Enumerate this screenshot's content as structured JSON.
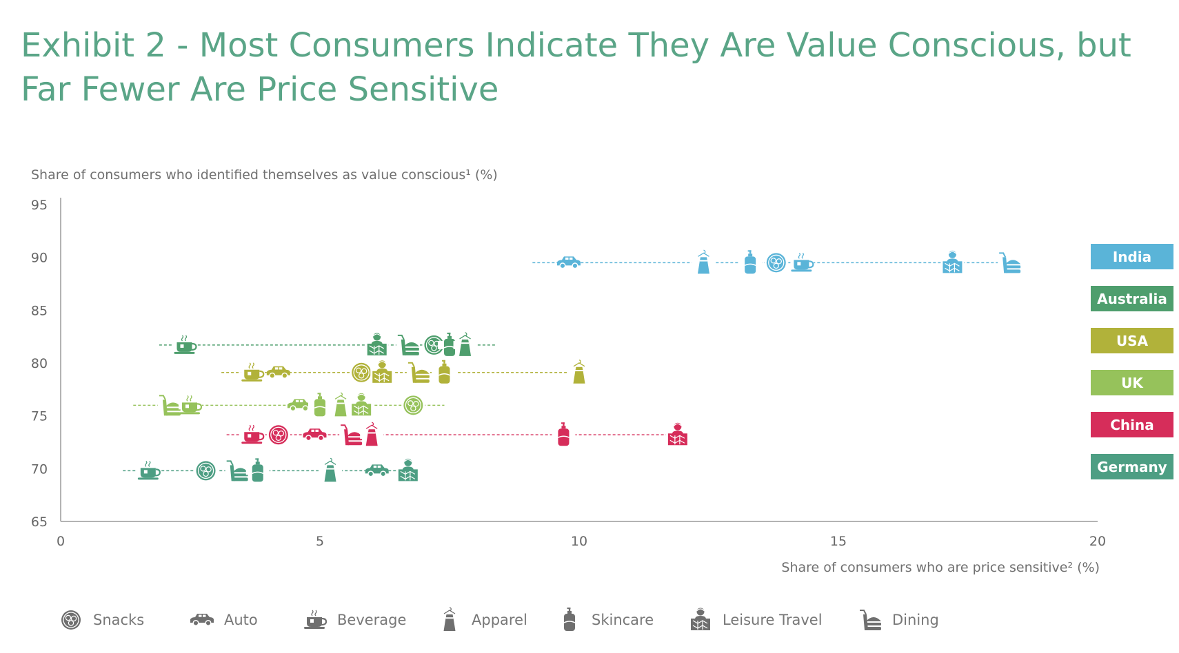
{
  "title": {
    "line1": "Exhibit 2 - Most Consumers Indicate They Are Value Conscious, but",
    "line2": "Far Fewer Are Price Sensitive"
  },
  "chart_data": {
    "type": "scatter",
    "title": "Exhibit 2 - Most Consumers Indicate They Are Value Conscious, but Far Fewer Are Price Sensitive",
    "ylabel": "Share of consumers who identified themselves as value conscious¹ (%)",
    "xlabel": "Share of consumers who are price sensitive² (%)",
    "xlim": [
      0,
      20
    ],
    "ylim": [
      65,
      95
    ],
    "xticks": [
      "0",
      "5",
      "10",
      "15",
      "20"
    ],
    "yticks": [
      "95",
      "90",
      "85",
      "80",
      "75",
      "70",
      "65"
    ],
    "grid": false,
    "legend_position": "bottom",
    "categories": [
      "Snacks",
      "Auto",
      "Beverage",
      "Apparel",
      "Skincare",
      "Leisure Travel",
      "Dining"
    ],
    "series": [
      {
        "name": "India",
        "color": "#5ab4d8",
        "y": 89.5,
        "line_range": [
          9.1,
          18.5
        ],
        "points": [
          {
            "category": "Auto",
            "x": 9.8
          },
          {
            "category": "Apparel",
            "x": 12.4
          },
          {
            "category": "Skincare",
            "x": 13.3
          },
          {
            "category": "Snacks",
            "x": 13.8
          },
          {
            "category": "Beverage",
            "x": 14.3
          },
          {
            "category": "Leisure Travel",
            "x": 17.2
          },
          {
            "category": "Dining",
            "x": 18.3
          }
        ]
      },
      {
        "name": "Australia",
        "color": "#4e9e6d",
        "y": 81.7,
        "line_range": [
          1.9,
          8.4
        ],
        "points": [
          {
            "category": "Beverage",
            "x": 2.4
          },
          {
            "category": "Leisure Travel",
            "x": 6.1
          },
          {
            "category": "Dining",
            "x": 6.7
          },
          {
            "category": "Snacks",
            "x": 7.2
          },
          {
            "category": "Skincare",
            "x": 7.5
          },
          {
            "category": "Apparel",
            "x": 7.8
          }
        ]
      },
      {
        "name": "USA",
        "color": "#b1b23a",
        "y": 79.1,
        "line_range": [
          3.1,
          10.1
        ],
        "points": [
          {
            "category": "Beverage",
            "x": 3.7
          },
          {
            "category": "Auto",
            "x": 4.2
          },
          {
            "category": "Snacks",
            "x": 5.8
          },
          {
            "category": "Leisure Travel",
            "x": 6.2
          },
          {
            "category": "Dining",
            "x": 6.9
          },
          {
            "category": "Skincare",
            "x": 7.4
          },
          {
            "category": "Apparel",
            "x": 10.0
          }
        ]
      },
      {
        "name": "UK",
        "color": "#96c25b",
        "y": 76.0,
        "line_range": [
          1.4,
          7.4
        ],
        "points": [
          {
            "category": "Dining",
            "x": 2.1
          },
          {
            "category": "Beverage",
            "x": 2.5
          },
          {
            "category": "Auto",
            "x": 4.6
          },
          {
            "category": "Skincare",
            "x": 5.0
          },
          {
            "category": "Apparel",
            "x": 5.4
          },
          {
            "category": "Leisure Travel",
            "x": 5.8
          },
          {
            "category": "Snacks",
            "x": 6.8
          }
        ]
      },
      {
        "name": "China",
        "color": "#d62d5a",
        "y": 73.2,
        "line_range": [
          3.2,
          11.8
        ],
        "points": [
          {
            "category": "Beverage",
            "x": 3.7
          },
          {
            "category": "Snacks",
            "x": 4.2
          },
          {
            "category": "Auto",
            "x": 4.9
          },
          {
            "category": "Dining",
            "x": 5.6
          },
          {
            "category": "Apparel",
            "x": 6.0
          },
          {
            "category": "Skincare",
            "x": 9.7
          },
          {
            "category": "Leisure Travel",
            "x": 11.9
          }
        ]
      },
      {
        "name": "Germany",
        "color": "#4d9e83",
        "y": 69.8,
        "line_range": [
          1.2,
          6.8
        ],
        "points": [
          {
            "category": "Beverage",
            "x": 1.7
          },
          {
            "category": "Snacks",
            "x": 2.8
          },
          {
            "category": "Dining",
            "x": 3.4
          },
          {
            "category": "Skincare",
            "x": 3.8
          },
          {
            "category": "Apparel",
            "x": 5.2
          },
          {
            "category": "Auto",
            "x": 6.1
          },
          {
            "category": "Leisure Travel",
            "x": 6.7
          }
        ]
      }
    ]
  },
  "legend": {
    "items": [
      {
        "icon": "snacks-icon",
        "label": "Snacks"
      },
      {
        "icon": "auto-icon",
        "label": "Auto"
      },
      {
        "icon": "beverage-icon",
        "label": "Beverage"
      },
      {
        "icon": "apparel-icon",
        "label": "Apparel"
      },
      {
        "icon": "skincare-icon",
        "label": "Skincare"
      },
      {
        "icon": "leisure-travel-icon",
        "label": "Leisure Travel"
      },
      {
        "icon": "dining-icon",
        "label": "Dining"
      }
    ],
    "color": "#6f6f6f"
  }
}
